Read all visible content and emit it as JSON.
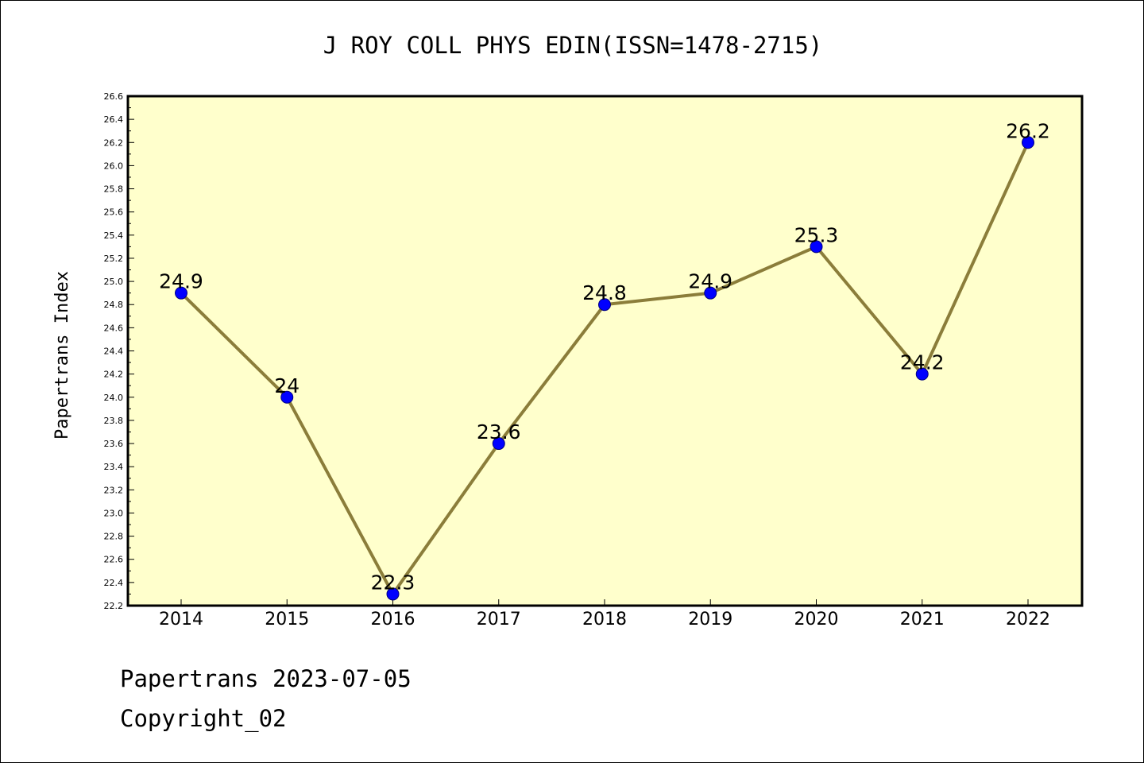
{
  "chart_data": {
    "type": "line",
    "title": "J ROY COLL PHYS EDIN(ISSN=1478-2715)",
    "xlabel": "",
    "ylabel": "Papertrans Index",
    "categories": [
      "2014",
      "2015",
      "2016",
      "2017",
      "2018",
      "2019",
      "2020",
      "2021",
      "2022"
    ],
    "series": [
      {
        "values": [
          24.9,
          24.0,
          22.3,
          23.6,
          24.8,
          24.9,
          25.3,
          24.2,
          26.2
        ],
        "labels": [
          "24.9",
          "24",
          "22.3",
          "23.6",
          "24.8",
          "24.9",
          "25.3",
          "24.2",
          "26.2"
        ]
      }
    ],
    "ylim": [
      22.2,
      26.6
    ],
    "yticks": [
      "22.2",
      "22.4",
      "22.6",
      "22.8",
      "23.0",
      "23.2",
      "23.4",
      "23.6",
      "23.8",
      "24.0",
      "24.2",
      "24.4",
      "24.6",
      "24.8",
      "25.0",
      "25.2",
      "25.4",
      "25.6",
      "25.8",
      "26.0",
      "26.2",
      "26.4",
      "26.6"
    ],
    "grid": false,
    "colors": {
      "plot_background": "#ffffcc",
      "line": "#8b7d3a",
      "marker": "#0000ff",
      "marker_edge": "#000080"
    }
  },
  "footer": {
    "date_line": "Papertrans 2023-07-05",
    "copyright_line": "Copyright_02"
  }
}
